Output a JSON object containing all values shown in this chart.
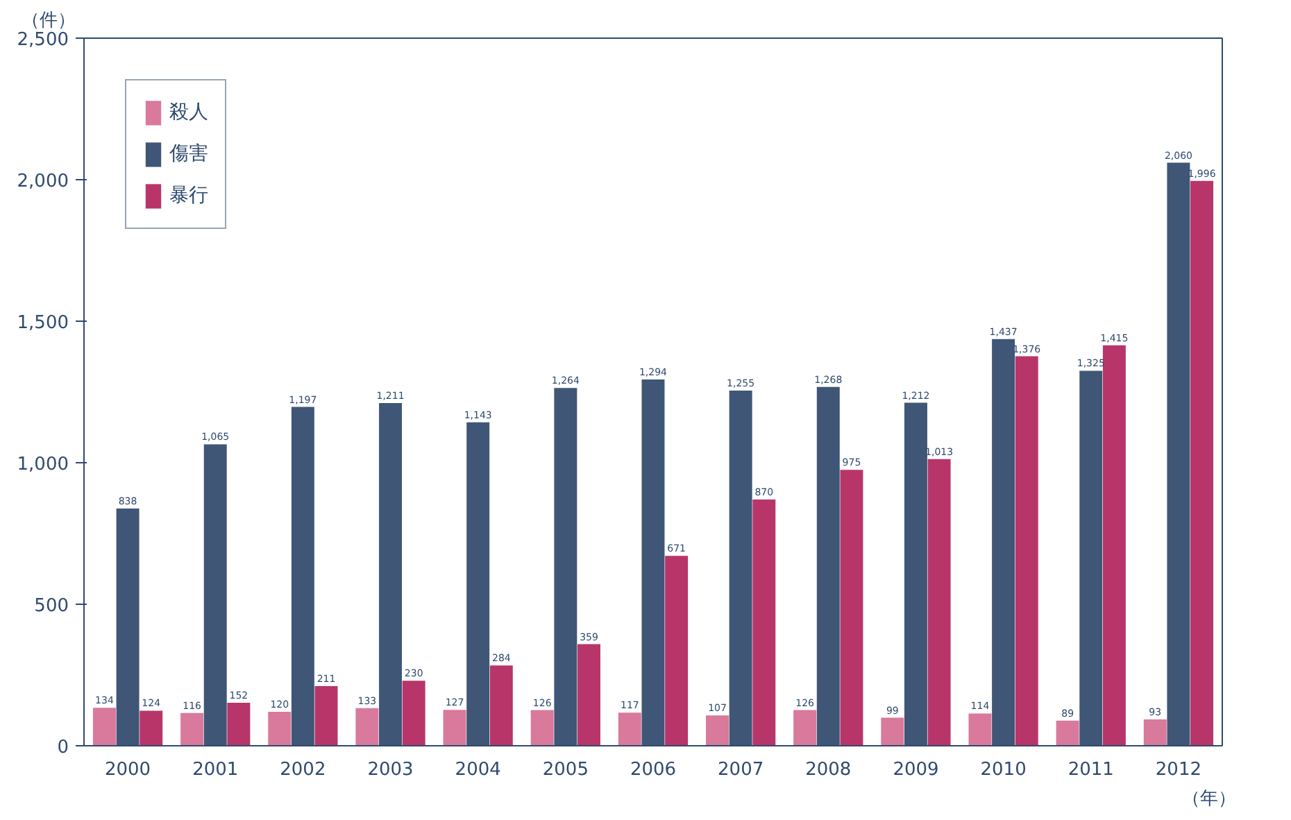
{
  "chart_data": {
    "type": "bar",
    "xlabel": "（年）",
    "ylabel": "（件）",
    "categories": [
      "2000",
      "2001",
      "2002",
      "2003",
      "2004",
      "2005",
      "2006",
      "2007",
      "2008",
      "2009",
      "2010",
      "2011",
      "2012"
    ],
    "series": [
      {
        "name": "殺人",
        "color": "#d9799b",
        "values": [
          134,
          116,
          120,
          133,
          127,
          126,
          117,
          107,
          126,
          99,
          114,
          89,
          93
        ],
        "value_labels": [
          "134",
          "116",
          "120",
          "133",
          "127",
          "126",
          "117",
          "107",
          "126",
          "99",
          "114",
          "89",
          "93"
        ]
      },
      {
        "name": "傷害",
        "color": "#3f5677",
        "values": [
          838,
          1065,
          1197,
          1211,
          1143,
          1264,
          1294,
          1255,
          1268,
          1212,
          1437,
          1325,
          2060
        ],
        "value_labels": [
          "838",
          "1,065",
          "1,197",
          "1,211",
          "1,143",
          "1,264",
          "1,294",
          "1,255",
          "1,268",
          "1,212",
          "1,437",
          "1,325",
          "2,060"
        ]
      },
      {
        "name": "暴行",
        "color": "#b8356a",
        "values": [
          124,
          152,
          211,
          230,
          284,
          359,
          671,
          870,
          975,
          1013,
          1376,
          1415,
          1996
        ],
        "value_labels": [
          "124",
          "152",
          "211",
          "230",
          "284",
          "359",
          "671",
          "870",
          "975",
          "1,013",
          "1,376",
          "1,415",
          "1,996"
        ]
      }
    ],
    "ylim": [
      0,
      2500
    ],
    "yticks": [
      {
        "value": 0,
        "label": "0"
      },
      {
        "value": 500,
        "label": "500"
      },
      {
        "value": 1000,
        "label": "1,000"
      },
      {
        "value": 1500,
        "label": "1,500"
      },
      {
        "value": 2000,
        "label": "2,000"
      },
      {
        "value": 2500,
        "label": "2,500"
      }
    ],
    "legend": "top left",
    "grid": false
  }
}
